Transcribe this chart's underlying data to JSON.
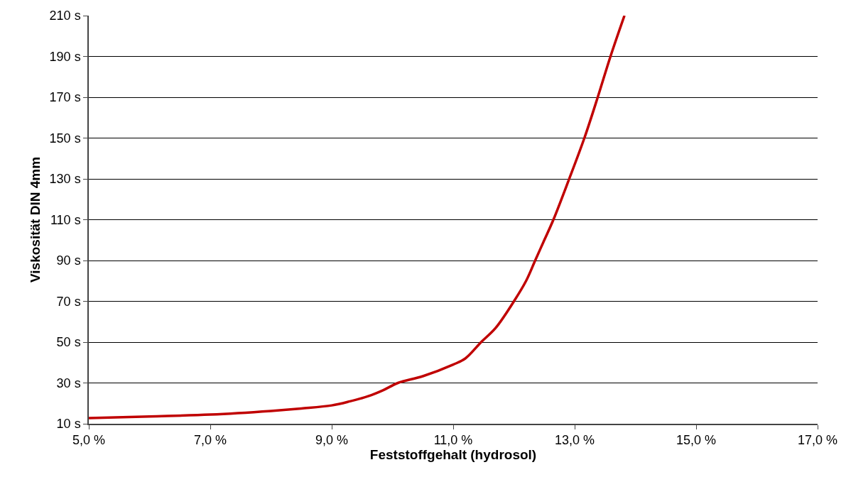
{
  "chart_data": {
    "type": "line",
    "xlabel": "Feststoffgehalt (hydrosol)",
    "ylabel": "Viskosität DIN 4mm",
    "x": [
      5.0,
      6.0,
      7.0,
      8.0,
      8.5,
      9.0,
      9.3,
      9.6,
      9.85,
      10.09,
      10.5,
      11.0,
      11.2,
      11.46,
      11.7,
      12.0,
      12.2,
      12.35,
      12.5,
      12.65,
      12.91,
      13.16,
      13.38,
      13.59,
      13.82
    ],
    "series": [
      {
        "color": "#c00000",
        "values": [
          12.8,
          13.6,
          14.5,
          16.3,
          17.5,
          19,
          21,
          23.5,
          26.5,
          30,
          33.3,
          39,
          42,
          50,
          57,
          70,
          80,
          90,
          100,
          110,
          130,
          150,
          170,
          190,
          210
        ]
      }
    ],
    "xlim": [
      5,
      17
    ],
    "ylim": [
      10,
      210
    ],
    "xticks": [
      {
        "value": 5,
        "label": "5,0 %"
      },
      {
        "value": 7,
        "label": "7,0 %"
      },
      {
        "value": 9,
        "label": "9,0 %"
      },
      {
        "value": 11,
        "label": "11,0 %"
      },
      {
        "value": 13,
        "label": "13,0 %"
      },
      {
        "value": 15,
        "label": "15,0 %"
      },
      {
        "value": 17,
        "label": "17,0 %"
      }
    ],
    "yticks": [
      {
        "value": 10,
        "label": "10 s"
      },
      {
        "value": 30,
        "label": "30 s"
      },
      {
        "value": 50,
        "label": "50 s"
      },
      {
        "value": 70,
        "label": "70 s"
      },
      {
        "value": 90,
        "label": "90 s"
      },
      {
        "value": 110,
        "label": "110 s"
      },
      {
        "value": 130,
        "label": "130 s"
      },
      {
        "value": 150,
        "label": "150 s"
      },
      {
        "value": 170,
        "label": "170 s"
      },
      {
        "value": 190,
        "label": "190 s"
      },
      {
        "value": 210,
        "label": "210 s"
      }
    ],
    "grid": "y",
    "marker": "none",
    "line_style": "solid"
  }
}
